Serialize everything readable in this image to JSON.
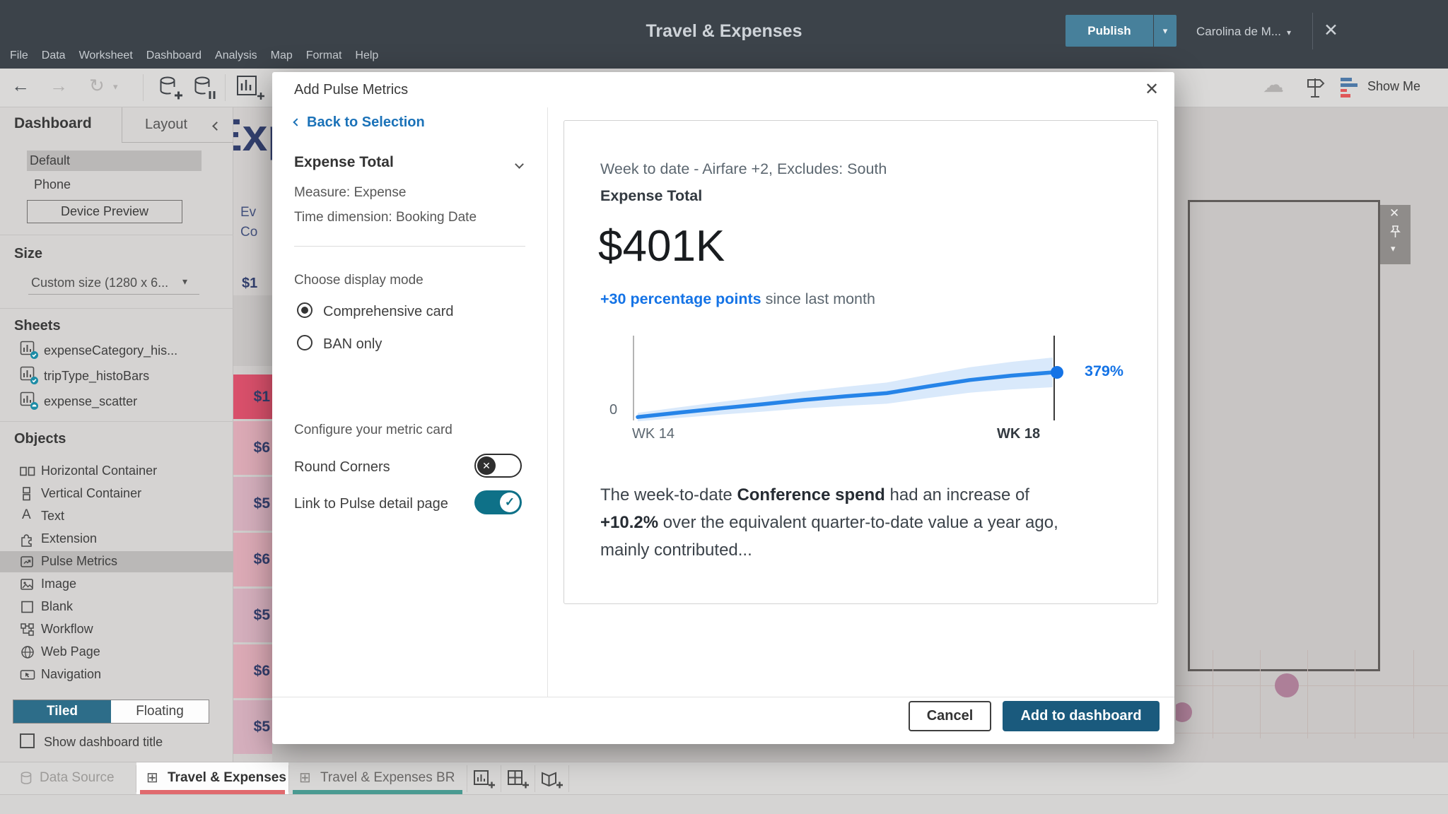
{
  "colors": {
    "topbar-bg": "#3c434a",
    "publish-teal": "#47809b",
    "link-blue": "#1b72b8",
    "accent-blue": "#1473e6",
    "toggle-teal": "#0e7188",
    "tiled-teal": "#2d6d89",
    "submit-navy": "#1a5a7d",
    "tab-red": "#e06a6e",
    "tab-teal": "#4a9a91",
    "cell-red": "#d9506b",
    "cell-pink": "#dcaab6",
    "cell-pink-alt": "#d5afbd",
    "cell-navy": "#333f6e"
  },
  "glyphs": {
    "back_arrow": "←",
    "forward_arrow": "→",
    "redo_arrow": "↻",
    "caret_down": "▾",
    "cloud": "☁",
    "close_x": "✕",
    "check": "✓",
    "grid_tab": "⊞"
  },
  "topbar": {
    "menu": [
      "File",
      "Data",
      "Worksheet",
      "Dashboard",
      "Analysis",
      "Map",
      "Format",
      "Help"
    ],
    "title": "Travel & Expenses",
    "publish_label": "Publish",
    "user_name": "Carolina de M...",
    "show_me_label": "Show Me"
  },
  "sidebar": {
    "tab_dashboard": "Dashboard",
    "tab_layout": "Layout",
    "devices": [
      "Default",
      "Phone"
    ],
    "selected_device": "Default",
    "device_preview_label": "Device Preview",
    "size_header": "Size",
    "size_value": "Custom size (1280 x 6...",
    "sheets_header": "Sheets",
    "sheets": [
      "expenseCategory_his...",
      "tripType_histoBars",
      "expense_scatter"
    ],
    "objects_header": "Objects",
    "objects": [
      "Horizontal Container",
      "Vertical Container",
      "Text",
      "Extension",
      "Pulse Metrics",
      "Image",
      "Blank",
      "Workflow",
      "Web Page",
      "Navigation"
    ],
    "selected_object": "Pulse Metrics",
    "tiled_label": "Tiled",
    "floating_label": "Floating",
    "placement_selected": "Tiled",
    "show_title_label": "Show dashboard title",
    "show_title_checked": false
  },
  "canvas": {
    "clipped_title": "Exp",
    "partial_labels": [
      "Ev",
      "Co"
    ],
    "partial_value": "$1",
    "cells": [
      "$1",
      "$6",
      "$5",
      "$6",
      "$5",
      "$6",
      "$5"
    ]
  },
  "modal": {
    "title": "Add Pulse Metrics",
    "back_label": "Back to Selection",
    "metric_name": "Expense Total",
    "measure_line": "Measure: Expense",
    "time_dimension_line": "Time dimension: Booking Date",
    "display_mode_label": "Choose display mode",
    "option_comprehensive": "Comprehensive card",
    "option_ban": "BAN only",
    "selected_mode": "Comprehensive card",
    "configure_label": "Configure your metric card",
    "round_corners_label": "Round Corners",
    "round_corners_enabled": false,
    "link_detail_label": "Link to Pulse detail page",
    "link_detail_enabled": true,
    "cancel_label": "Cancel",
    "submit_label": "Add to dashboard",
    "preview": {
      "subtitle": "Week to date - Airfare +2, Excludes: South",
      "metric_name": "Expense Total",
      "value": "$401K",
      "delta_highlight": "+30 percentage points",
      "delta_rest": " since last month",
      "desc_1a": "The week-to-date ",
      "desc_1b": "Conference spend",
      "desc_1c": " had an increase of",
      "desc_2a": "+10.2%",
      "desc_2b": " over the equivalent quarter-to-date value a year ago,",
      "desc_3": "mainly contributed..."
    }
  },
  "chart_data": {
    "type": "line",
    "title": "Expense Total week-to-date sparkline",
    "x_start_label": "WK 14",
    "x_end_label": "WK 18",
    "y_axis_zero": "0",
    "end_point_label": "379%",
    "values_pct": [
      5,
      42,
      78,
      112,
      148,
      178,
      205,
      262,
      315,
      352,
      379
    ],
    "ylim": [
      0,
      379
    ],
    "band": "widening confidence band",
    "line_color": "#2684e8",
    "band_color": "#d9e9fb",
    "legend": "none",
    "grid": false
  },
  "bottom_bar": {
    "data_source_label": "Data Source",
    "sheet_tabs": [
      "Travel & Expenses",
      "Travel & Expenses BR"
    ],
    "active_tab": "Travel & Expenses"
  }
}
